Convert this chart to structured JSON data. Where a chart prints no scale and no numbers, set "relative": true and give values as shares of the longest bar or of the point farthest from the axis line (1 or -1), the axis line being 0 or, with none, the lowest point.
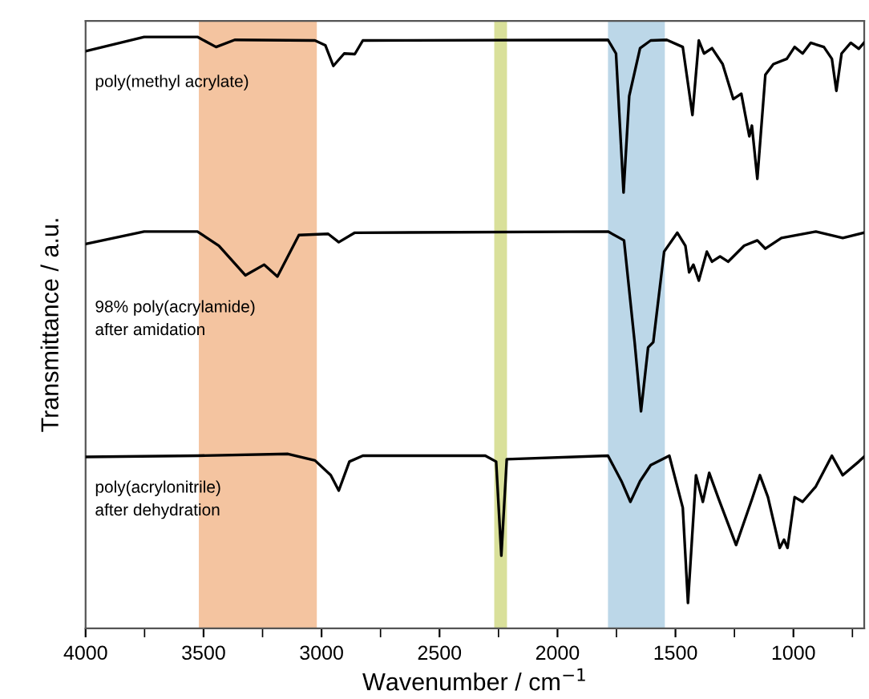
{
  "chart_data": {
    "type": "line",
    "relative": true,
    "xlabel": "Wavenumber / cm$^{−1}$",
    "ylabel": "Transmittance / a.u.",
    "tick_labels": "x",
    "grid": false,
    "line_style": "solid",
    "marker": "none",
    "xlim": [
      4000,
      700
    ],
    "xticks": [
      4000,
      {
        "value": 3750,
        "label": null
      },
      3500,
      {
        "value": 3250,
        "label": null
      },
      3000,
      {
        "value": 2750,
        "label": null
      },
      2500,
      {
        "value": 2250,
        "label": null
      },
      2000,
      {
        "value": 1750,
        "label": null
      },
      1500,
      {
        "value": 1250,
        "label": null
      },
      1000,
      {
        "value": 750,
        "label": null
      }
    ],
    "bands": [
      {
        "axis": "x",
        "from": 3520,
        "to": 3020,
        "label": null,
        "color": "#f4c4a0"
      },
      {
        "axis": "x",
        "from": 2268,
        "to": 2214,
        "label": null,
        "color": "#d9e09a"
      },
      {
        "axis": "x",
        "from": 1786,
        "to": 1545,
        "label": null,
        "color": "#bcd7e8"
      }
    ],
    "series": [
      {
        "name": "poly(methyl acrylate)",
        "color": "#000000",
        "x": [
          4000,
          3752,
          3526,
          3447,
          3368,
          3028,
          2984,
          2950,
          2904,
          2859,
          2825,
          1786,
          1752,
          1720,
          1696,
          1650,
          1605,
          1537,
          1469,
          1428,
          1401,
          1379,
          1345,
          1300,
          1255,
          1221,
          1187,
          1176,
          1153,
          1119,
          1085,
          1028,
          995,
          961,
          927,
          871,
          837,
          818,
          796,
          757,
          723,
          701
        ],
        "values": [
          0.976,
          1,
          1,
          0.983,
          0.995,
          0.994,
          0.986,
          0.951,
          0.972,
          0.971,
          0.994,
          0.995,
          0.972,
          0.737,
          0.9,
          0.981,
          0.994,
          0.995,
          0.983,
          0.868,
          0.994,
          0.972,
          0.981,
          0.954,
          0.895,
          0.904,
          0.832,
          0.85,
          0.76,
          0.936,
          0.954,
          0.963,
          0.983,
          0.972,
          0.99,
          0.983,
          0.963,
          0.909,
          0.972,
          0.99,
          0.98,
          0.99
        ]
      },
      {
        "name": "98% poly(acrylamide)\nafter amidation",
        "color": "#000000",
        "x": [
          4000,
          3752,
          3526,
          3435,
          3323,
          3243,
          3187,
          3096,
          2972,
          2927,
          2859,
          1786,
          1718,
          1673,
          1646,
          1616,
          1594,
          1548,
          1492,
          1458,
          1442,
          1424,
          1401,
          1367,
          1345,
          1311,
          1277,
          1209,
          1153,
          1119,
          1051,
          905,
          791,
          701
        ],
        "values": [
          0.65,
          0.671,
          0.671,
          0.647,
          0.597,
          0.615,
          0.595,
          0.665,
          0.667,
          0.653,
          0.669,
          0.671,
          0.656,
          0.484,
          0.367,
          0.475,
          0.484,
          0.637,
          0.669,
          0.647,
          0.602,
          0.615,
          0.588,
          0.637,
          0.62,
          0.629,
          0.62,
          0.647,
          0.656,
          0.642,
          0.66,
          0.671,
          0.66,
          0.669
        ]
      },
      {
        "name": "poly(acrylonitrile)\nafter dehydration",
        "color": "#000000",
        "x": [
          4000,
          3526,
          3142,
          3028,
          2961,
          2927,
          2882,
          2825,
          2306,
          2260,
          2238,
          2215,
          1786,
          1729,
          1691,
          1650,
          1605,
          1526,
          1469,
          1447,
          1413,
          1384,
          1357,
          1316,
          1243,
          1176,
          1142,
          1108,
          1058,
          1040,
          1025,
          995,
          961,
          905,
          837,
          791,
          723,
          701
        ],
        "values": [
          0.29,
          0.292,
          0.295,
          0.284,
          0.259,
          0.233,
          0.282,
          0.292,
          0.292,
          0.282,
          0.123,
          0.286,
          0.292,
          0.249,
          0.214,
          0.249,
          0.276,
          0.292,
          0.204,
          0.043,
          0.259,
          0.214,
          0.263,
          0.218,
          0.141,
          0.218,
          0.259,
          0.222,
          0.136,
          0.15,
          0.136,
          0.222,
          0.214,
          0.24,
          0.292,
          0.259,
          0.282,
          0.29
        ]
      }
    ]
  }
}
